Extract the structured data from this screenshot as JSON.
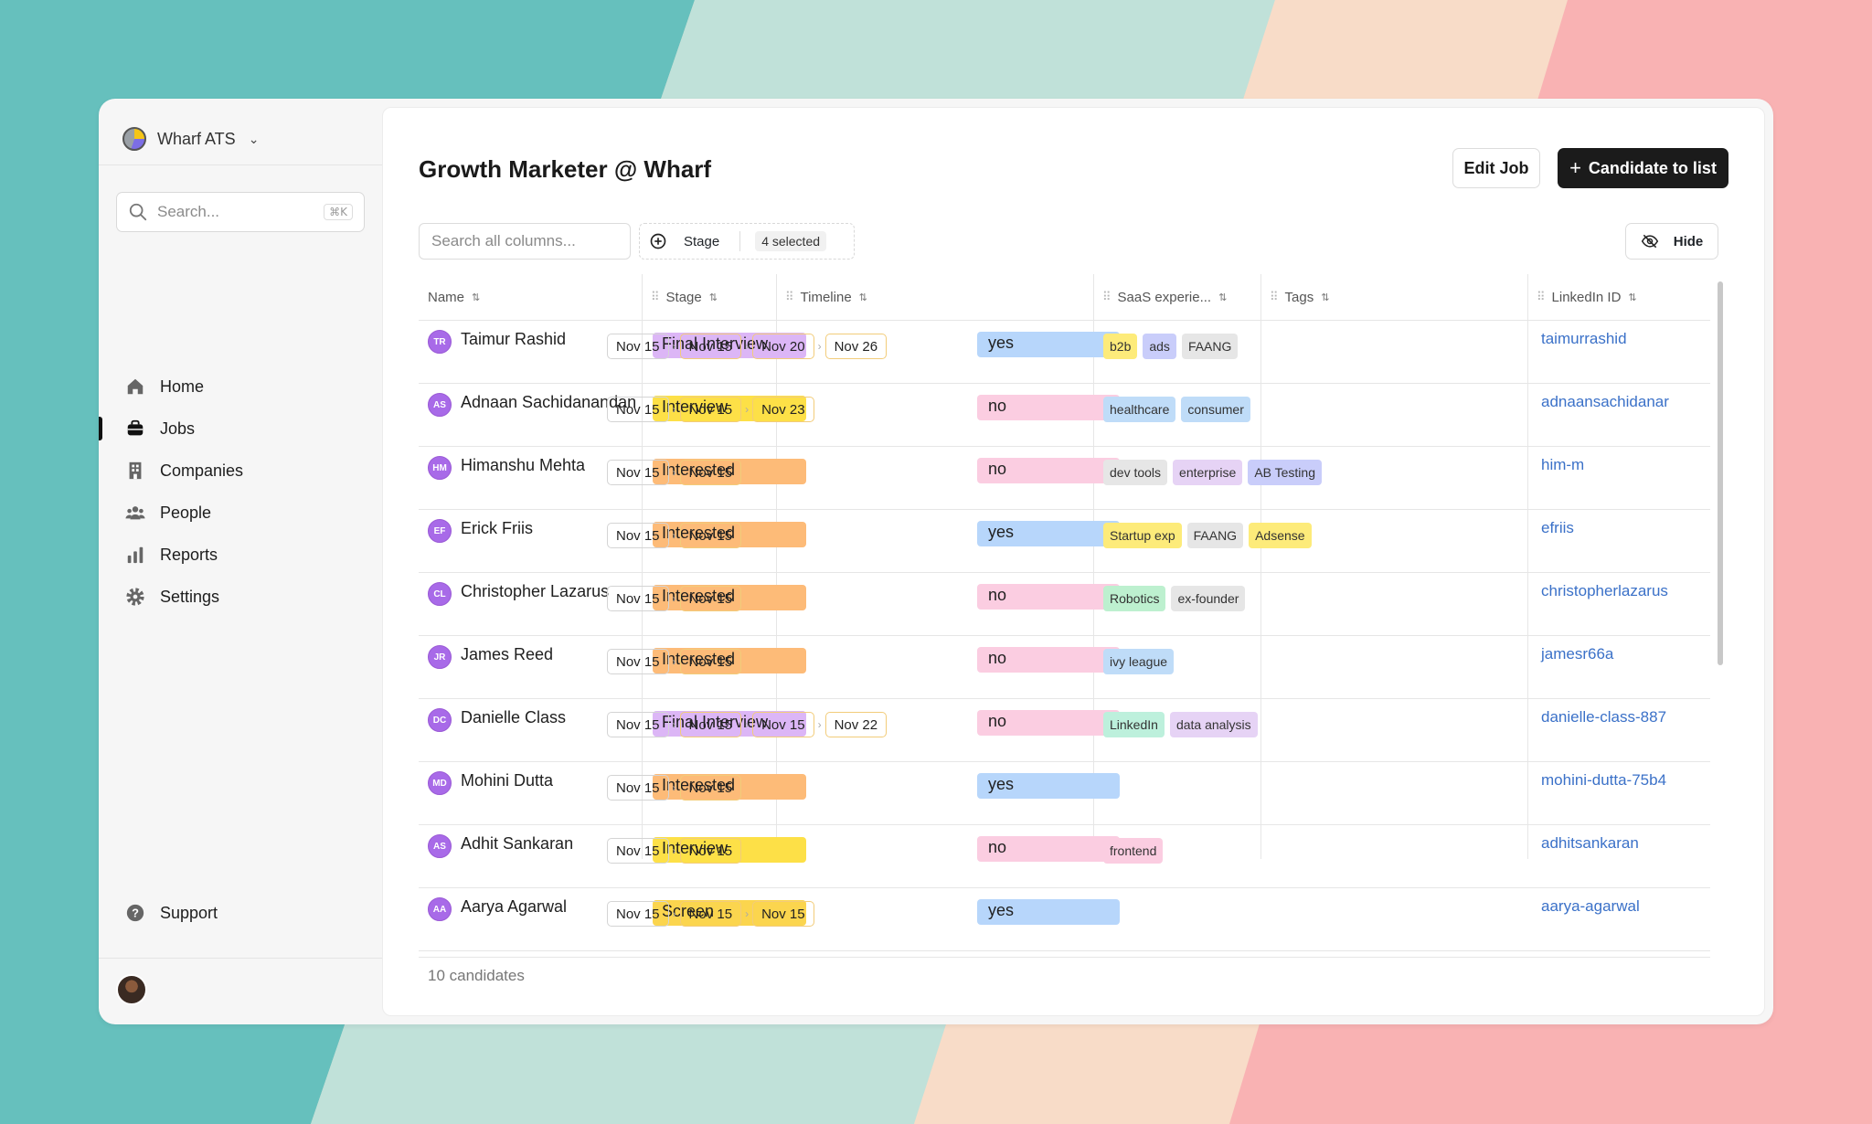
{
  "workspace": {
    "name": "Wharf ATS"
  },
  "sidebar": {
    "search_placeholder": "Search...",
    "search_shortcut": "⌘K",
    "items": [
      {
        "label": "Home",
        "icon": "home-icon",
        "active": false
      },
      {
        "label": "Jobs",
        "icon": "briefcase-icon",
        "active": true
      },
      {
        "label": "Companies",
        "icon": "building-icon",
        "active": false
      },
      {
        "label": "People",
        "icon": "people-icon",
        "active": false
      },
      {
        "label": "Reports",
        "icon": "bar-chart-icon",
        "active": false
      },
      {
        "label": "Settings",
        "icon": "gear-icon",
        "active": false
      }
    ],
    "support_label": "Support"
  },
  "page": {
    "title": "Growth Marketer @ Wharf",
    "edit_button": "Edit Job",
    "add_button": "Candidate to list",
    "search_placeholder": "Search all columns...",
    "stage_filter_label": "Stage",
    "stage_filter_count": "4 selected",
    "hide_button": "Hide"
  },
  "table": {
    "columns": [
      "Name",
      "Stage",
      "Timeline",
      "SaaS experie...",
      "Tags",
      "LinkedIn ID"
    ],
    "rows": [
      {
        "initials": "TR",
        "name": "Taimur Rashid",
        "stage": "Final Interview",
        "timeline": [
          "Nov 15",
          "Nov 15",
          "Nov 20",
          "Nov 26"
        ],
        "saas": "yes",
        "tags": [
          "b2b",
          "ads",
          "FAANG"
        ],
        "linkedin": "taimurrashid"
      },
      {
        "initials": "AS",
        "name": "Adnaan Sachidanandan",
        "stage": "Interview",
        "timeline": [
          "Nov 15",
          "Nov 15",
          "Nov 23"
        ],
        "saas": "no",
        "tags": [
          "healthcare",
          "consumer"
        ],
        "linkedin": "adnaansachidanar"
      },
      {
        "initials": "HM",
        "name": "Himanshu Mehta",
        "stage": "Interested",
        "timeline": [
          "Nov 15",
          "Nov 15"
        ],
        "saas": "no",
        "tags": [
          "dev tools",
          "enterprise",
          "AB Testing"
        ],
        "linkedin": "him-m"
      },
      {
        "initials": "EF",
        "name": "Erick Friis",
        "stage": "Interested",
        "timeline": [
          "Nov 15",
          "Nov 15"
        ],
        "saas": "yes",
        "tags": [
          "Startup exp",
          "FAANG",
          "Adsense"
        ],
        "linkedin": "efriis"
      },
      {
        "initials": "CL",
        "name": "Christopher Lazarus",
        "stage": "Interested",
        "timeline": [
          "Nov 15",
          "Nov 15"
        ],
        "saas": "no",
        "tags": [
          "Robotics",
          "ex-founder"
        ],
        "linkedin": "christopherlazarus"
      },
      {
        "initials": "JR",
        "name": "James Reed",
        "stage": "Interested",
        "timeline": [
          "Nov 15",
          "Nov 15"
        ],
        "saas": "no",
        "tags": [
          "ivy league"
        ],
        "linkedin": "jamesr66a"
      },
      {
        "initials": "DC",
        "name": "Danielle Class",
        "stage": "Final Interview",
        "timeline": [
          "Nov 15",
          "Nov 15",
          "Nov 15",
          "Nov 22"
        ],
        "saas": "no",
        "tags": [
          "LinkedIn",
          "data analysis"
        ],
        "linkedin": "danielle-class-887"
      },
      {
        "initials": "MD",
        "name": "Mohini Dutta",
        "stage": "Interested",
        "timeline": [
          "Nov 15",
          "Nov 15"
        ],
        "saas": "yes",
        "tags": [],
        "linkedin": "mohini-dutta-75b4"
      },
      {
        "initials": "AS",
        "name": "Adhit Sankaran",
        "stage": "Interview",
        "timeline": [
          "Nov 15",
          "Nov 15"
        ],
        "saas": "no",
        "tags": [
          "frontend"
        ],
        "linkedin": "adhitsankaran"
      },
      {
        "initials": "AA",
        "name": "Aarya Agarwal",
        "stage": "Screen",
        "timeline": [
          "Nov 15",
          "Nov 15",
          "Nov 15"
        ],
        "saas": "yes",
        "tags": [],
        "linkedin": "aarya-agarwal"
      }
    ],
    "footer": "10 candidates"
  },
  "colors": {
    "stage": {
      "Final Interview": "#dcb6f6",
      "Interview": "#fde047",
      "Interested": "#fdbb78",
      "Screen": "#fbd54e"
    },
    "saas": {
      "yes": "#b7d6fb",
      "no": "#fbcde1"
    },
    "tags": {
      "b2b": "#fdeb7a",
      "ads": "#c9cdfa",
      "FAANG": "#e6e6e6",
      "healthcare": "#bfdcf8",
      "consumer": "#bfdcf8",
      "dev tools": "#e6e6e6",
      "enterprise": "#e6d3f5",
      "AB Testing": "#c9cdfa",
      "Startup exp": "#fdeb7a",
      "Adsense": "#fdeb7a",
      "Robotics": "#bdf0cf",
      "ex-founder": "#e6e6e6",
      "ivy league": "#bfdcf8",
      "LinkedIn": "#bdf0dc",
      "data analysis": "#e6d3f5",
      "frontend": "#fbcde1"
    },
    "primary_button": "#1b1b1b",
    "link": "#3b71c8",
    "avatar": "#a86ae8"
  }
}
